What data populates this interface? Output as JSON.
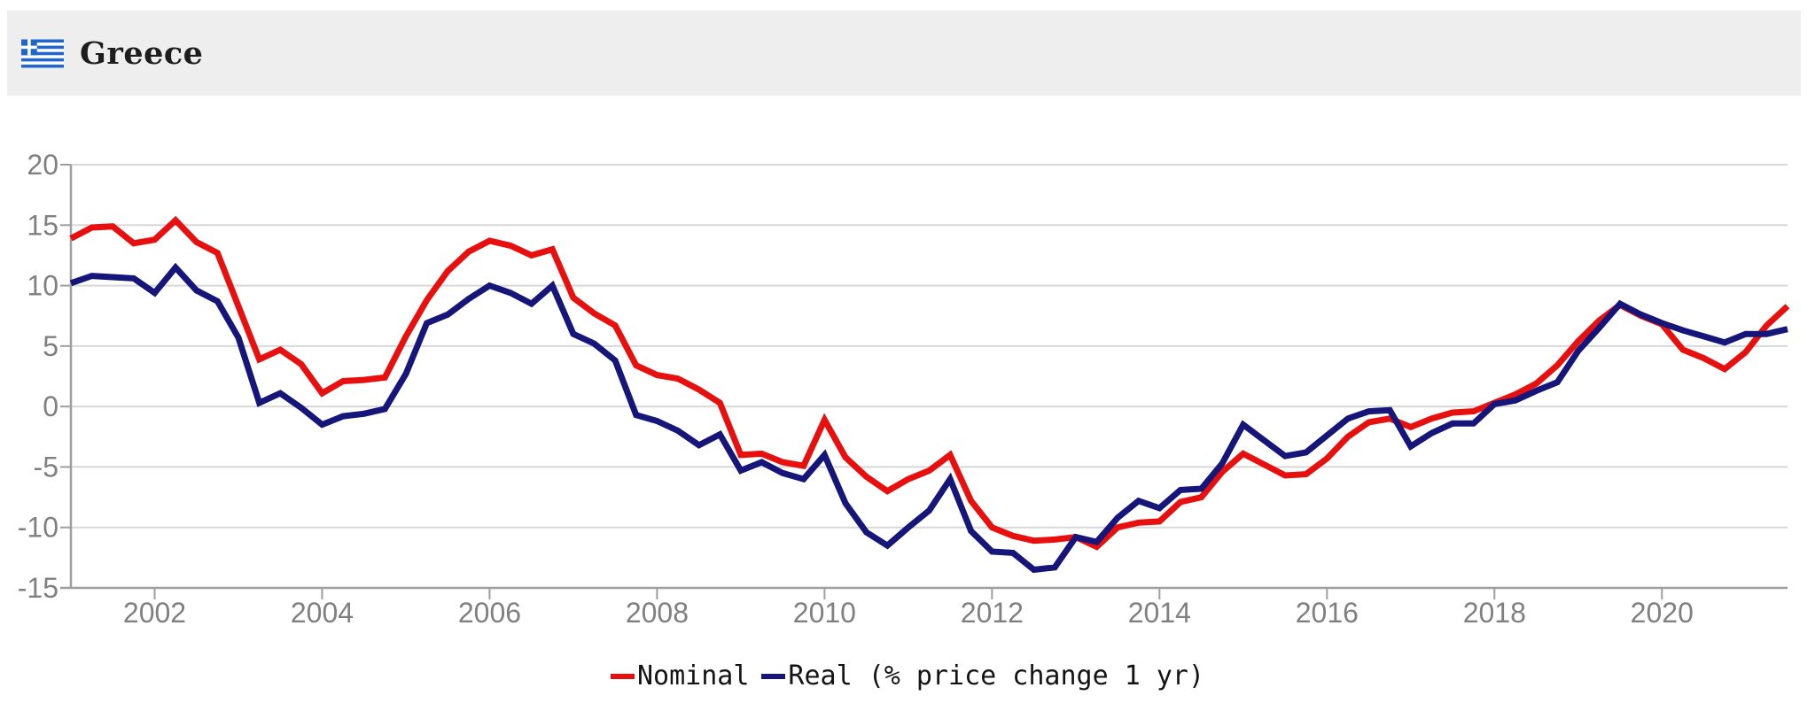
{
  "header": {
    "title": "Greece",
    "flag_blue": "#2066cc"
  },
  "axes": {
    "y_tick_labels": [
      "20",
      "15",
      "10",
      "5",
      "0",
      "-5",
      "-10",
      "-15"
    ],
    "x_tick_labels": [
      "2002",
      "2004",
      "2006",
      "2008",
      "2010",
      "2012",
      "2014",
      "2016",
      "2018",
      "2020"
    ]
  },
  "chart_data": {
    "type": "line",
    "title": "Greece",
    "xlabel": "",
    "ylabel": "",
    "grid": true,
    "legend_position": "bottom-center",
    "xlim": [
      2001.0,
      2021.5
    ],
    "ylim": [
      -15,
      20
    ],
    "y_ticks": [
      20,
      15,
      10,
      5,
      0,
      -5,
      -10,
      -15
    ],
    "x_ticks": [
      2002,
      2004,
      2006,
      2008,
      2010,
      2012,
      2014,
      2016,
      2018,
      2020
    ],
    "x_start": 2001.0,
    "x_step": 0.25,
    "x_unit": "year (quarterly points)",
    "colors": {
      "grid": "#d8d8d8",
      "axis": "#9e9e9e",
      "tick_label": "#808080"
    },
    "series": [
      {
        "name": "Nominal",
        "color": "#e8100f",
        "values": [
          13.9,
          14.8,
          14.9,
          13.5,
          13.8,
          15.4,
          13.6,
          12.7,
          8.3,
          3.9,
          4.7,
          3.5,
          1.1,
          2.1,
          2.2,
          2.4,
          5.8,
          8.8,
          11.2,
          12.8,
          13.7,
          13.3,
          12.5,
          13.0,
          9.0,
          7.7,
          6.7,
          3.4,
          2.6,
          2.3,
          1.4,
          0.3,
          -4.0,
          -3.9,
          -4.6,
          -4.9,
          -1.1,
          -4.2,
          -5.8,
          -7.0,
          -6.0,
          -5.3,
          -4.0,
          -7.8,
          -10.0,
          -10.7,
          -11.1,
          -11.0,
          -10.8,
          -11.6,
          -10.0,
          -9.6,
          -9.5,
          -7.9,
          -7.5,
          -5.4,
          -3.9,
          -4.8,
          -5.7,
          -5.6,
          -4.3,
          -2.5,
          -1.3,
          -1.0,
          -1.7,
          -1.0,
          -0.5,
          -0.4,
          0.3,
          1.0,
          1.9,
          3.4,
          5.4,
          7.1,
          8.4,
          7.5,
          6.8,
          4.7,
          4.0,
          3.1,
          4.5,
          6.7,
          8.3
        ]
      },
      {
        "name": "Real (% price change 1 yr)",
        "color": "#15157a",
        "values": [
          10.2,
          10.8,
          10.7,
          10.6,
          9.4,
          11.5,
          9.6,
          8.7,
          5.7,
          0.3,
          1.1,
          -0.1,
          -1.5,
          -0.8,
          -0.6,
          -0.2,
          2.7,
          6.9,
          7.6,
          8.9,
          10.0,
          9.4,
          8.5,
          10.0,
          6.0,
          5.2,
          3.8,
          -0.7,
          -1.2,
          -2.0,
          -3.2,
          -2.3,
          -5.3,
          -4.6,
          -5.5,
          -6.0,
          -4.0,
          -8.0,
          -10.4,
          -11.5,
          -10.0,
          -8.6,
          -6.0,
          -10.3,
          -12.0,
          -12.1,
          -13.5,
          -13.3,
          -10.8,
          -11.2,
          -9.2,
          -7.8,
          -8.4,
          -6.9,
          -6.8,
          -4.7,
          -1.5,
          -2.8,
          -4.1,
          -3.8,
          -2.4,
          -1.0,
          -0.4,
          -0.3,
          -3.3,
          -2.2,
          -1.4,
          -1.4,
          0.2,
          0.5,
          1.3,
          2.0,
          4.6,
          6.5,
          8.5,
          7.6,
          6.9,
          6.3,
          5.8,
          5.3,
          6.0,
          6.0,
          6.4
        ]
      }
    ]
  }
}
